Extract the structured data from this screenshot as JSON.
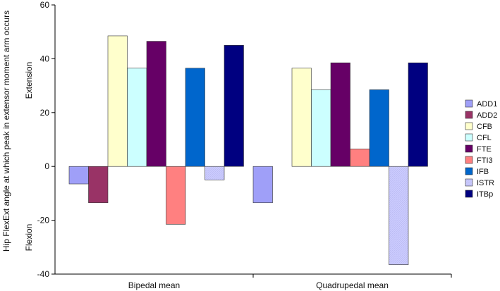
{
  "chart_data": {
    "type": "bar",
    "ylabel": "Hip FlexExt angle at which peak in extensor moment arm occurs",
    "annotations": {
      "top": "Extension",
      "bottom": "Flexion"
    },
    "ylim": [
      -40,
      60
    ],
    "yticks": [
      -40,
      -20,
      0,
      20,
      40,
      60
    ],
    "categories": [
      "Bipedal mean",
      "Quadrupedal mean"
    ],
    "legend_position": "right",
    "series": [
      {
        "name": "ADD1",
        "color": "#9f9ff8",
        "values": [
          -6.5,
          -13.5
        ]
      },
      {
        "name": "ADD2",
        "color": "#993366",
        "values": [
          -13.5,
          null
        ]
      },
      {
        "name": "CFB",
        "color": "#ffffcc",
        "values": [
          48.5,
          36.5
        ]
      },
      {
        "name": "CFL",
        "color": "#ccffff",
        "values": [
          36.5,
          28.5
        ]
      },
      {
        "name": "FTE",
        "color": "#660066",
        "values": [
          46.5,
          38.5
        ]
      },
      {
        "name": "FTI3",
        "color": "#ff8080",
        "values": [
          -21.5,
          6.5
        ]
      },
      {
        "name": "IFB",
        "color": "#0066cc",
        "values": [
          36.5,
          28.5
        ]
      },
      {
        "name": "ISTR",
        "color": "#ccccff",
        "values": [
          -5,
          -36.5
        ]
      },
      {
        "name": "ITBp",
        "color": "#000080",
        "values": [
          45,
          38.5
        ]
      }
    ]
  }
}
